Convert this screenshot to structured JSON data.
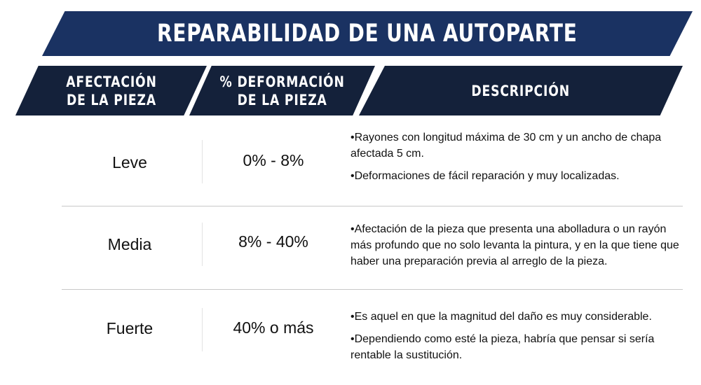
{
  "title": "REPARABILIDAD DE UNA AUTOPARTE",
  "headers": {
    "afectacion": "AFECTACIÓN\nDE LA PIEZA",
    "deformacion": "% DEFORMACIÓN\nDE LA PIEZA",
    "descripcion": "DESCRIPCIÓN"
  },
  "rows": [
    {
      "level": "Leve",
      "percent": "0% - 8%",
      "descriptions": [
        "•Rayones con longitud máxima de 30 cm y un ancho de chapa afectada 5 cm.",
        "•Deformaciones de fácil reparación y muy localizadas."
      ]
    },
    {
      "level": "Media",
      "percent": "8% - 40%",
      "descriptions": [
        "•Afectación de la pieza que presenta una abolladura o un rayón más profundo que no solo levanta la pintura, y en la que tiene que haber una preparación previa al arreglo de la pieza."
      ]
    },
    {
      "level": "Fuerte",
      "percent": "40% o más",
      "descriptions": [
        "•Es aquel en que la magnitud del daño es muy considerable.",
        "•Dependiendo como esté la pieza, habría que pensar si sería rentable la sustitución."
      ]
    }
  ],
  "colors": {
    "title_banner": "#1a3262",
    "header_band": "#14213a",
    "text": "#111111",
    "divider": "#c8c8c8"
  }
}
